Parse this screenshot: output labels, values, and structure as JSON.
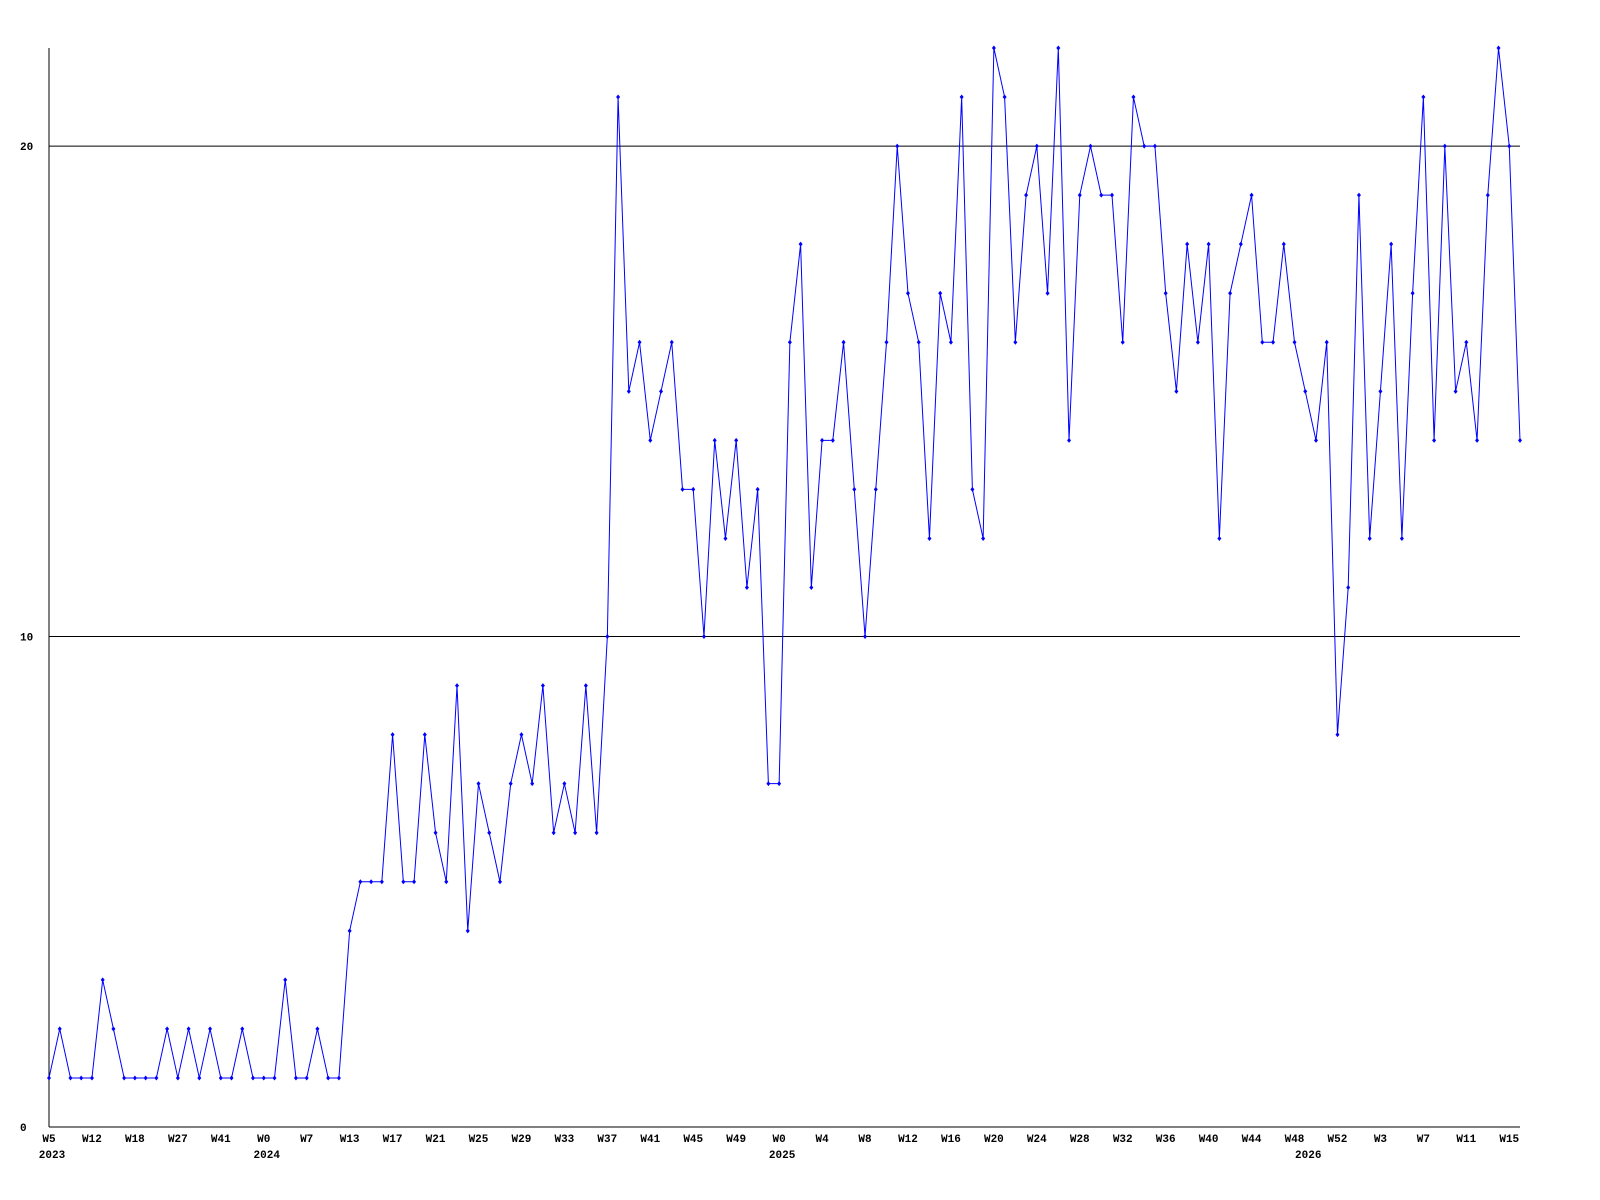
{
  "chart_data": {
    "type": "line",
    "categories": [
      "W5",
      null,
      null,
      null,
      "W12",
      null,
      null,
      null,
      "W18",
      null,
      null,
      null,
      "W27",
      null,
      null,
      null,
      "W41",
      null,
      null,
      null,
      "W0",
      null,
      null,
      null,
      "W7",
      null,
      null,
      null,
      "W13",
      null,
      null,
      null,
      "W17",
      null,
      null,
      null,
      "W21",
      null,
      null,
      null,
      "W25",
      null,
      null,
      null,
      "W29",
      null,
      null,
      null,
      "W33",
      null,
      null,
      null,
      "W37",
      null,
      null,
      null,
      "W41",
      null,
      null,
      null,
      "W45",
      null,
      null,
      null,
      "W49",
      null,
      null,
      null,
      "W0",
      null,
      null,
      null,
      "W4",
      null,
      null,
      null,
      "W8",
      null,
      null,
      null,
      "W12",
      null,
      null,
      null,
      "W16",
      null,
      null,
      null,
      "W20",
      null,
      null,
      null,
      "W24",
      null,
      null,
      null,
      "W28",
      null,
      null,
      null,
      "W32",
      null,
      null,
      null,
      "W36",
      null,
      null,
      null,
      "W40",
      null,
      null,
      null,
      "W44",
      null,
      null,
      null,
      "W48",
      null,
      null,
      null,
      "W52",
      null,
      null,
      null,
      "W3",
      null,
      null,
      null,
      "W7",
      null,
      null,
      null,
      "W11",
      null,
      null,
      null,
      "W15",
      null
    ],
    "years": [
      "2023",
      null,
      null,
      null,
      null,
      null,
      null,
      null,
      null,
      null,
      null,
      null,
      null,
      null,
      null,
      null,
      null,
      null,
      null,
      null,
      "2024",
      null,
      null,
      null,
      null,
      null,
      null,
      null,
      null,
      null,
      null,
      null,
      null,
      null,
      null,
      null,
      null,
      null,
      null,
      null,
      null,
      null,
      null,
      null,
      null,
      null,
      null,
      null,
      null,
      null,
      null,
      null,
      null,
      null,
      null,
      null,
      null,
      null,
      null,
      null,
      null,
      null,
      null,
      null,
      null,
      null,
      null,
      null,
      "2025",
      null,
      null,
      null,
      null,
      null,
      null,
      null,
      null,
      null,
      null,
      null,
      null,
      null,
      null,
      null,
      null,
      null,
      null,
      null,
      null,
      null,
      null,
      null,
      null,
      null,
      null,
      null,
      null,
      null,
      null,
      null,
      null,
      null,
      null,
      null,
      null,
      null,
      null,
      null,
      null,
      null,
      null,
      null,
      null,
      null,
      null,
      null,
      null,
      "2026",
      null,
      null,
      null,
      null,
      null,
      null,
      null,
      null,
      null,
      null,
      null,
      null,
      null,
      null,
      null,
      null
    ],
    "series": [
      {
        "color": "#0000ff",
        "values": [
          1,
          2,
          1,
          1,
          1,
          3,
          2,
          1,
          1,
          1,
          1,
          2,
          1,
          2,
          1,
          2,
          1,
          1,
          2,
          1,
          1,
          1,
          3,
          1,
          1,
          2,
          1,
          1,
          4,
          5,
          5,
          5,
          8,
          5,
          5,
          8,
          6,
          5,
          9,
          4,
          7,
          6,
          5,
          7,
          8,
          7,
          9,
          6,
          7,
          6,
          9,
          6,
          10,
          21,
          15,
          16,
          14,
          15,
          16,
          13,
          13,
          10,
          14,
          12,
          14,
          11,
          13,
          7,
          7,
          16,
          18,
          11,
          14,
          14,
          16,
          13,
          10,
          13,
          16,
          20,
          17,
          16,
          12,
          17,
          16,
          21,
          13,
          12,
          22,
          21,
          16,
          19,
          20,
          17,
          22,
          14,
          19,
          20,
          19,
          19,
          16,
          21,
          20,
          20,
          17,
          15,
          18,
          16,
          18,
          12,
          17,
          18,
          19,
          16,
          16,
          18,
          16,
          15,
          14,
          16,
          8,
          11,
          19,
          12,
          15,
          18,
          12,
          17,
          21,
          14,
          20,
          15,
          16,
          14,
          19,
          22,
          20,
          14
        ]
      }
    ],
    "ylim": [
      0,
      22
    ],
    "yticks": [
      0,
      10,
      20
    ],
    "grid": true
  }
}
